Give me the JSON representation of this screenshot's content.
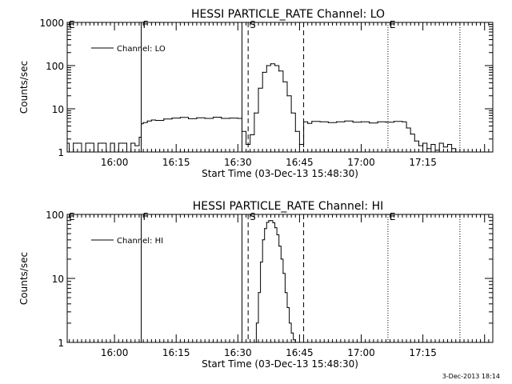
{
  "chart_data": [
    {
      "type": "line",
      "title": "HESSI PARTICLE_RATE Channel: LO",
      "xlabel": "Start Time (03-Dec-13 15:48:30)",
      "ylabel": "Counts/sec",
      "y_scale": "log",
      "ylim": [
        1,
        1000
      ],
      "xlim": [
        "15:48:30",
        "17:32:00"
      ],
      "x_ticks": [
        "16:00",
        "16:15",
        "16:30",
        "16:45",
        "17:00",
        "17:15"
      ],
      "y_ticks": [
        "1",
        "10",
        "100",
        "1000"
      ],
      "legend": {
        "label": "Channel: LO",
        "position": "top-left"
      },
      "markers": [
        {
          "label": "E",
          "time": "15:48:30",
          "style": "solid"
        },
        {
          "label": "F",
          "time": "16:06:30",
          "style": "solid"
        },
        {
          "label": "",
          "time": "16:31:00",
          "style": "solid"
        },
        {
          "label": "S",
          "time": "16:32:30",
          "style": "dashed"
        },
        {
          "label": "",
          "time": "16:46:00",
          "style": "dashed"
        },
        {
          "label": "E",
          "time": "17:06:30",
          "style": "dotted"
        },
        {
          "label": "",
          "time": "17:24:00",
          "style": "dotted"
        }
      ],
      "series": [
        {
          "name": "Channel: LO",
          "x": [
            "15:48:30",
            "15:49",
            "15:50",
            "15:51",
            "15:52",
            "15:53",
            "15:54",
            "15:55",
            "15:56",
            "15:57",
            "15:58",
            "15:59",
            "16:00",
            "16:01",
            "16:02",
            "16:03",
            "16:04",
            "16:05",
            "16:06",
            "16:06:30",
            "16:07",
            "16:08",
            "16:09",
            "16:10",
            "16:12",
            "16:14",
            "16:16",
            "16:18",
            "16:20",
            "16:22",
            "16:24",
            "16:26",
            "16:28",
            "16:30",
            "16:31",
            "16:32",
            "16:33",
            "16:34",
            "16:35",
            "16:36",
            "16:37",
            "16:38",
            "16:39",
            "16:40",
            "16:41",
            "16:42",
            "16:43",
            "16:44",
            "16:45",
            "16:46",
            "16:47",
            "16:48",
            "16:50",
            "16:52",
            "16:54",
            "16:56",
            "16:58",
            "17:00",
            "17:02",
            "17:04",
            "17:06",
            "17:08",
            "17:10",
            "17:11",
            "17:12",
            "17:13",
            "17:14",
            "17:15",
            "17:16",
            "17:17",
            "17:18",
            "17:19",
            "17:20",
            "17:21",
            "17:22",
            "17:23"
          ],
          "values": [
            1.6,
            1,
            1.6,
            1.6,
            1,
            1.6,
            1.6,
            1,
            1.6,
            1.6,
            1,
            1.6,
            1,
            1.6,
            1.6,
            1,
            1.6,
            1.4,
            2.2,
            4.5,
            4.8,
            5.2,
            5.5,
            5.4,
            5.8,
            6.1,
            6.3,
            5.9,
            6.2,
            6.0,
            6.4,
            6.0,
            6.1,
            6.0,
            3.0,
            1.5,
            2.5,
            8,
            30,
            70,
            100,
            110,
            100,
            75,
            42,
            20,
            8,
            3,
            1.5,
            5,
            4.6,
            5.1,
            5.0,
            4.8,
            5.0,
            5.2,
            4.9,
            5.0,
            4.7,
            5.0,
            4.9,
            5.1,
            5.0,
            3.6,
            2.6,
            1.8,
            1.4,
            1.6,
            1.2,
            1.5,
            1.1,
            1.6,
            1.3,
            1.5,
            1.2,
            1
          ]
        }
      ]
    },
    {
      "type": "line",
      "title": "HESSI PARTICLE_RATE Channel: HI",
      "xlabel": "Start Time (03-Dec-13 15:48:30)",
      "ylabel": "Counts/sec",
      "y_scale": "log",
      "ylim": [
        1,
        100
      ],
      "xlim": [
        "15:48:30",
        "17:32:00"
      ],
      "x_ticks": [
        "16:00",
        "16:15",
        "16:30",
        "16:45",
        "17:00",
        "17:15"
      ],
      "y_ticks": [
        "1",
        "10",
        "100"
      ],
      "legend": {
        "label": "Channel: HI",
        "position": "top-left"
      },
      "markers": [
        {
          "label": "E",
          "time": "15:48:30",
          "style": "solid"
        },
        {
          "label": "F",
          "time": "16:06:30",
          "style": "solid"
        },
        {
          "label": "",
          "time": "16:31:00",
          "style": "solid"
        },
        {
          "label": "S",
          "time": "16:32:30",
          "style": "dashed"
        },
        {
          "label": "",
          "time": "16:46:00",
          "style": "dashed"
        },
        {
          "label": "E",
          "time": "17:06:30",
          "style": "dotted"
        },
        {
          "label": "",
          "time": "17:24:00",
          "style": "dotted"
        }
      ],
      "series": [
        {
          "name": "Channel: HI",
          "x": [
            "16:34:00",
            "16:34:30",
            "16:35",
            "16:35:30",
            "16:36",
            "16:36:30",
            "16:37",
            "16:37:30",
            "16:38",
            "16:38:30",
            "16:39",
            "16:39:30",
            "16:40",
            "16:40:30",
            "16:41",
            "16:41:30",
            "16:42",
            "16:42:30",
            "16:43",
            "16:43:30",
            "16:44"
          ],
          "values": [
            1,
            2,
            6,
            18,
            40,
            60,
            75,
            80,
            80,
            74,
            62,
            48,
            32,
            20,
            12,
            6,
            3.5,
            2,
            1.4,
            1.1,
            1
          ]
        }
      ]
    }
  ],
  "timestamp": "3-Dec-2013 18:14"
}
